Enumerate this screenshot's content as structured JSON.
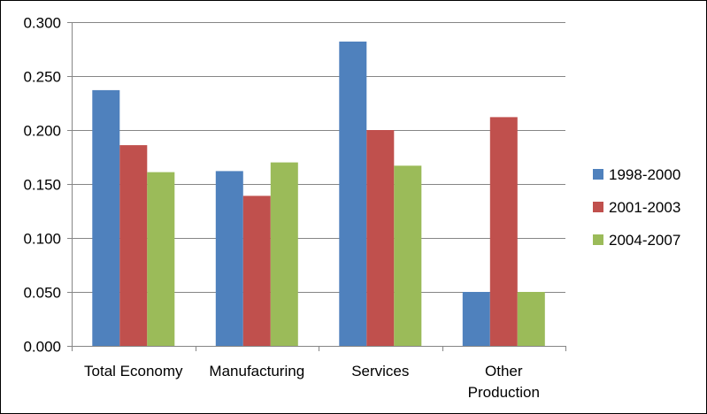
{
  "chart_data": {
    "type": "bar",
    "title": "",
    "xlabel": "",
    "ylabel": "",
    "categories": [
      [
        "Total Economy"
      ],
      [
        "Manufacturing"
      ],
      [
        "Services"
      ],
      [
        "Other",
        "Production"
      ]
    ],
    "series": [
      {
        "name": "1998-2000",
        "color": "#4F81BD",
        "values": [
          0.237,
          0.162,
          0.282,
          0.05
        ]
      },
      {
        "name": "2001-2003",
        "color": "#C0504D",
        "values": [
          0.186,
          0.139,
          0.2,
          0.212
        ]
      },
      {
        "name": "2004-2007",
        "color": "#9BBB59",
        "values": [
          0.161,
          0.17,
          0.167,
          0.05
        ]
      }
    ],
    "ylim": [
      0,
      0.3
    ],
    "yticks": [
      "0.000",
      "0.050",
      "0.100",
      "0.150",
      "0.200",
      "0.250",
      "0.300"
    ],
    "grid": true,
    "legend_position": "right"
  }
}
